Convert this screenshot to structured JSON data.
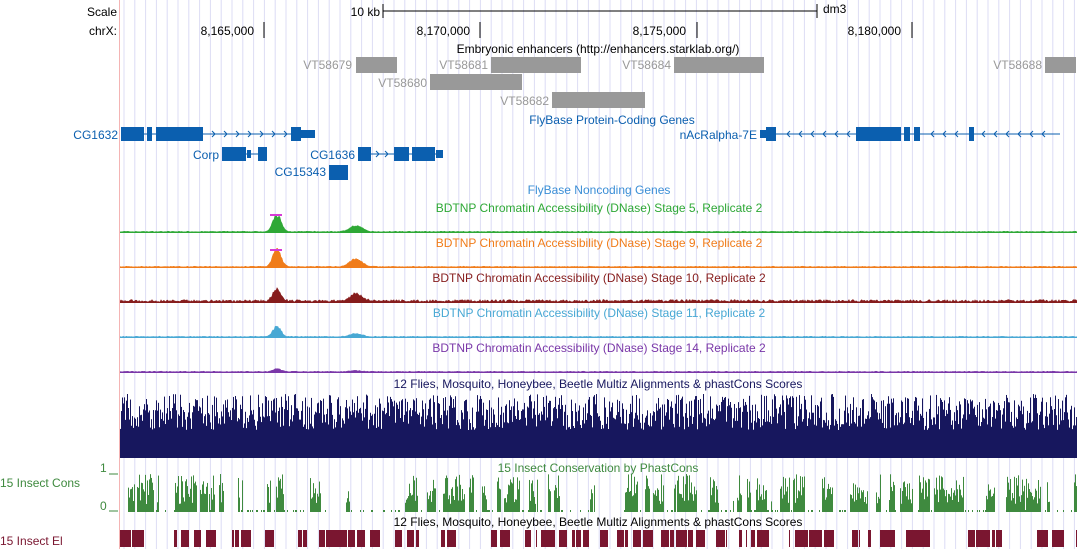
{
  "header": {
    "scale_label": "Scale",
    "chrom_label": "chrX:",
    "scalebar_label": "10 kb",
    "assembly": "dm3",
    "positions": [
      "8,165,000",
      "8,170,000",
      "8,175,000",
      "8,180,000"
    ]
  },
  "tracks": {
    "enhancers": {
      "title": "Embryonic enhancers (http://enhancers.starklab.org/)",
      "items": [
        "VT58679",
        "VT58681",
        "VT58684",
        "VT58688",
        "VT58680",
        "VT58682"
      ],
      "color": "#999999"
    },
    "coding": {
      "title": "FlyBase Protein-Coding Genes",
      "genes": [
        "CG1632",
        "nAcRalpha-7E",
        "Corp",
        "CG1636",
        "CG15343"
      ],
      "color": "#0b5faf"
    },
    "noncoding": {
      "title": "FlyBase Noncoding Genes",
      "color": "#3a8ed6"
    },
    "dnase": [
      {
        "title": "BDTNP Chromatin Accessibility (DNase) Stage 5, Replicate 2",
        "color": "#2ea836"
      },
      {
        "title": "BDTNP Chromatin Accessibility (DNase) Stage 9, Replicate 2",
        "color": "#f07c1a"
      },
      {
        "title": "BDTNP Chromatin Accessibility (DNase) Stage 10, Replicate 2",
        "color": "#861c1c"
      },
      {
        "title": "BDTNP Chromatin Accessibility (DNase) Stage 11, Replicate 2",
        "color": "#48a8d4"
      },
      {
        "title": "BDTNP Chromatin Accessibility (DNase) Stage 14, Replicate 2",
        "color": "#7a37a8"
      }
    ],
    "multiz": {
      "title": "12 Flies, Mosquito, Honeybee, Beetle Multiz Alignments & phastCons Scores",
      "color": "#17175e"
    },
    "phastcons": {
      "title": "15 Insect Conservation by PhastCons",
      "side_label": "15 Insect Cons",
      "axis_max": "1",
      "axis_min": "0",
      "color": "#3f8a3f"
    },
    "elements": {
      "title": "12 Flies, Mosquito, Honeybee, Beetle Multiz Alignments & phastCons Scores",
      "side_label": "15 Insect El",
      "color": "#7a1630"
    }
  },
  "colors": {
    "peak_highlight": "#d63cd6",
    "grid": "#d8d8f4",
    "left_margin_line": "#f4b4b4"
  }
}
